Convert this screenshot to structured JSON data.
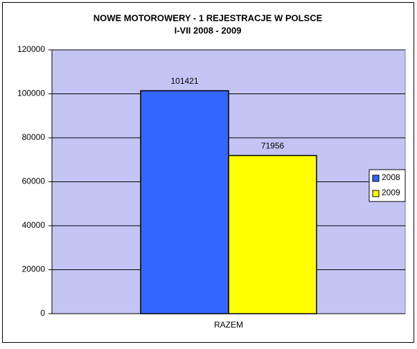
{
  "chart_data": {
    "type": "bar",
    "title": "NOWE MOTOROWERY - 1 REJESTRACJE W POLSCE",
    "subtitle": "I-VII 2008 - 2009",
    "categories": [
      "RAZEM"
    ],
    "series": [
      {
        "name": "2008",
        "color": "#3366ff",
        "values": [
          101421
        ]
      },
      {
        "name": "2009",
        "color": "#ffff00",
        "values": [
          71956
        ]
      }
    ],
    "ylim": [
      0,
      120000
    ],
    "yticks": [
      0,
      20000,
      40000,
      60000,
      80000,
      100000,
      120000
    ],
    "grid": true,
    "legend": "right"
  }
}
